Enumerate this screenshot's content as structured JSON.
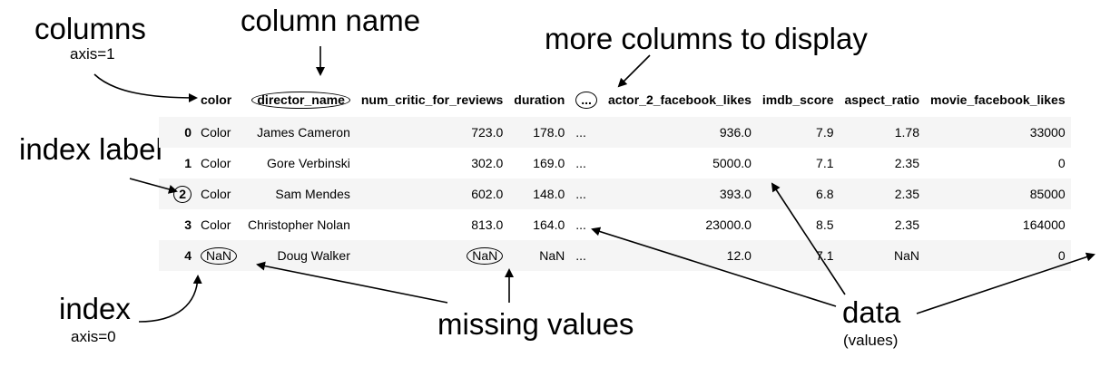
{
  "annotations": {
    "columns": "columns",
    "columns_axis": "axis=1",
    "column_name": "column name",
    "more_columns": "more columns to display",
    "index_label": "index label",
    "index": "index",
    "index_axis": "axis=0",
    "missing_values": "missing values",
    "data": "data",
    "data_sub": "(values)"
  },
  "table": {
    "headers": [
      "color",
      "director_name",
      "num_critic_for_reviews",
      "duration",
      "...",
      "actor_2_facebook_likes",
      "imdb_score",
      "aspect_ratio",
      "movie_facebook_likes"
    ],
    "rows": [
      {
        "index": "0",
        "cells": [
          "Color",
          "James Cameron",
          "723.0",
          "178.0",
          "...",
          "936.0",
          "7.9",
          "1.78",
          "33000"
        ]
      },
      {
        "index": "1",
        "cells": [
          "Color",
          "Gore Verbinski",
          "302.0",
          "169.0",
          "...",
          "5000.0",
          "7.1",
          "2.35",
          "0"
        ]
      },
      {
        "index": "2",
        "cells": [
          "Color",
          "Sam Mendes",
          "602.0",
          "148.0",
          "...",
          "393.0",
          "6.8",
          "2.35",
          "85000"
        ]
      },
      {
        "index": "3",
        "cells": [
          "Color",
          "Christopher Nolan",
          "813.0",
          "164.0",
          "...",
          "23000.0",
          "8.5",
          "2.35",
          "164000"
        ]
      },
      {
        "index": "4",
        "cells": [
          "NaN",
          "Doug Walker",
          "NaN",
          "NaN",
          "...",
          "12.0",
          "7.1",
          "NaN",
          "0"
        ]
      }
    ]
  }
}
